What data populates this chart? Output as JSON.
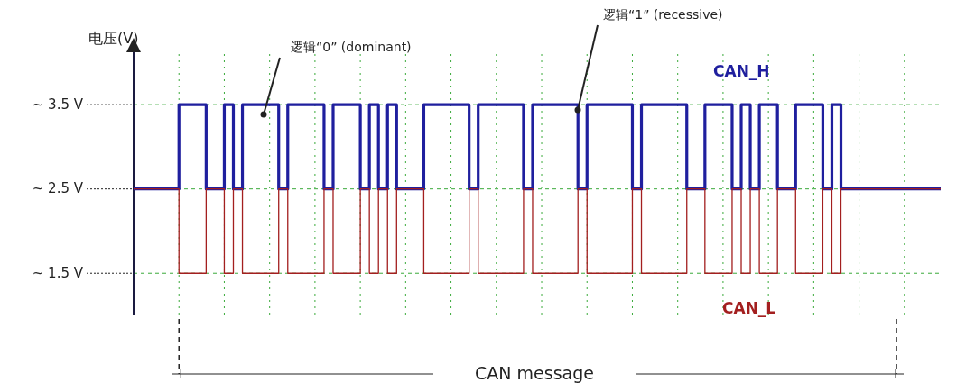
{
  "chart_data": {
    "type": "step",
    "ylabel": "电压(V)",
    "categories": [
      null,
      null,
      null,
      null,
      null,
      null,
      null,
      null,
      null,
      null,
      null,
      null,
      null,
      null,
      null,
      null,
      null,
      null,
      null,
      null,
      null,
      null,
      null,
      null,
      null,
      null,
      null,
      null,
      null,
      null,
      null,
      null,
      null,
      null,
      null,
      null,
      null,
      null,
      null,
      null,
      null,
      null,
      null,
      null,
      null,
      null,
      null,
      null,
      null,
      null,
      null,
      null,
      null,
      null,
      null,
      null,
      null,
      null,
      null,
      null,
      null,
      null,
      null,
      null,
      null,
      null,
      null,
      null,
      null,
      null,
      null,
      null,
      null,
      null,
      null,
      null,
      null,
      null,
      null,
      null,
      null,
      null,
      null,
      null,
      null,
      null,
      null,
      null,
      null,
      null
    ],
    "series": [
      {
        "name": "CAN_H",
        "color": "#1f1f9e",
        "values": [
          2.5,
          2.5,
          2.5,
          2.5,
          2.5,
          3.5,
          3.5,
          3.5,
          2.5,
          2.5,
          3.5,
          2.5,
          3.5,
          3.5,
          3.5,
          3.5,
          2.5,
          3.5,
          3.5,
          3.5,
          3.5,
          2.5,
          3.5,
          3.5,
          3.5,
          2.5,
          3.5,
          2.5,
          3.5,
          2.5,
          2.5,
          2.5,
          3.5,
          3.5,
          3.5,
          3.5,
          3.5,
          2.5,
          3.5,
          3.5,
          3.5,
          3.5,
          3.5,
          2.5,
          3.5,
          3.5,
          3.5,
          3.5,
          3.5,
          2.5,
          3.5,
          3.5,
          3.5,
          3.5,
          3.5,
          2.5,
          3.5,
          3.5,
          3.5,
          3.5,
          3.5,
          2.5,
          2.5,
          3.5,
          3.5,
          3.5,
          2.5,
          3.5,
          2.5,
          3.5,
          3.5,
          2.5,
          2.5,
          3.5,
          3.5,
          3.5,
          2.5,
          3.5,
          2.5,
          2.5,
          2.5,
          2.5,
          2.5,
          2.5,
          2.5,
          2.5,
          2.5,
          2.5,
          2.5,
          2.5
        ]
      },
      {
        "name": "CAN_L",
        "color": "#a31f1f",
        "values": [
          2.5,
          2.5,
          2.5,
          2.5,
          2.5,
          1.5,
          1.5,
          1.5,
          2.5,
          2.5,
          1.5,
          2.5,
          1.5,
          1.5,
          1.5,
          1.5,
          2.5,
          1.5,
          1.5,
          1.5,
          1.5,
          2.5,
          1.5,
          1.5,
          1.5,
          2.5,
          1.5,
          2.5,
          1.5,
          2.5,
          2.5,
          2.5,
          1.5,
          1.5,
          1.5,
          1.5,
          1.5,
          2.5,
          1.5,
          1.5,
          1.5,
          1.5,
          1.5,
          2.5,
          1.5,
          1.5,
          1.5,
          1.5,
          1.5,
          2.5,
          1.5,
          1.5,
          1.5,
          1.5,
          1.5,
          2.5,
          1.5,
          1.5,
          1.5,
          1.5,
          1.5,
          2.5,
          2.5,
          1.5,
          1.5,
          1.5,
          2.5,
          1.5,
          2.5,
          1.5,
          1.5,
          2.5,
          2.5,
          1.5,
          1.5,
          1.5,
          2.5,
          1.5,
          2.5,
          2.5,
          2.5,
          2.5,
          2.5,
          2.5,
          2.5,
          2.5,
          2.5,
          2.5,
          2.5,
          2.5
        ]
      }
    ],
    "ylim": [
      1.0,
      4.1
    ],
    "yticks": [
      {
        "value": 3.5,
        "label": "~ 3.5 V"
      },
      {
        "value": 2.5,
        "label": "~ 2.5 V"
      },
      {
        "value": 1.5,
        "label": "~ 1.5 V"
      }
    ],
    "grid": true,
    "annotations": [
      "逻辑“0” (dominant)",
      "逻辑“1” (recessive)",
      "CAN message"
    ]
  }
}
